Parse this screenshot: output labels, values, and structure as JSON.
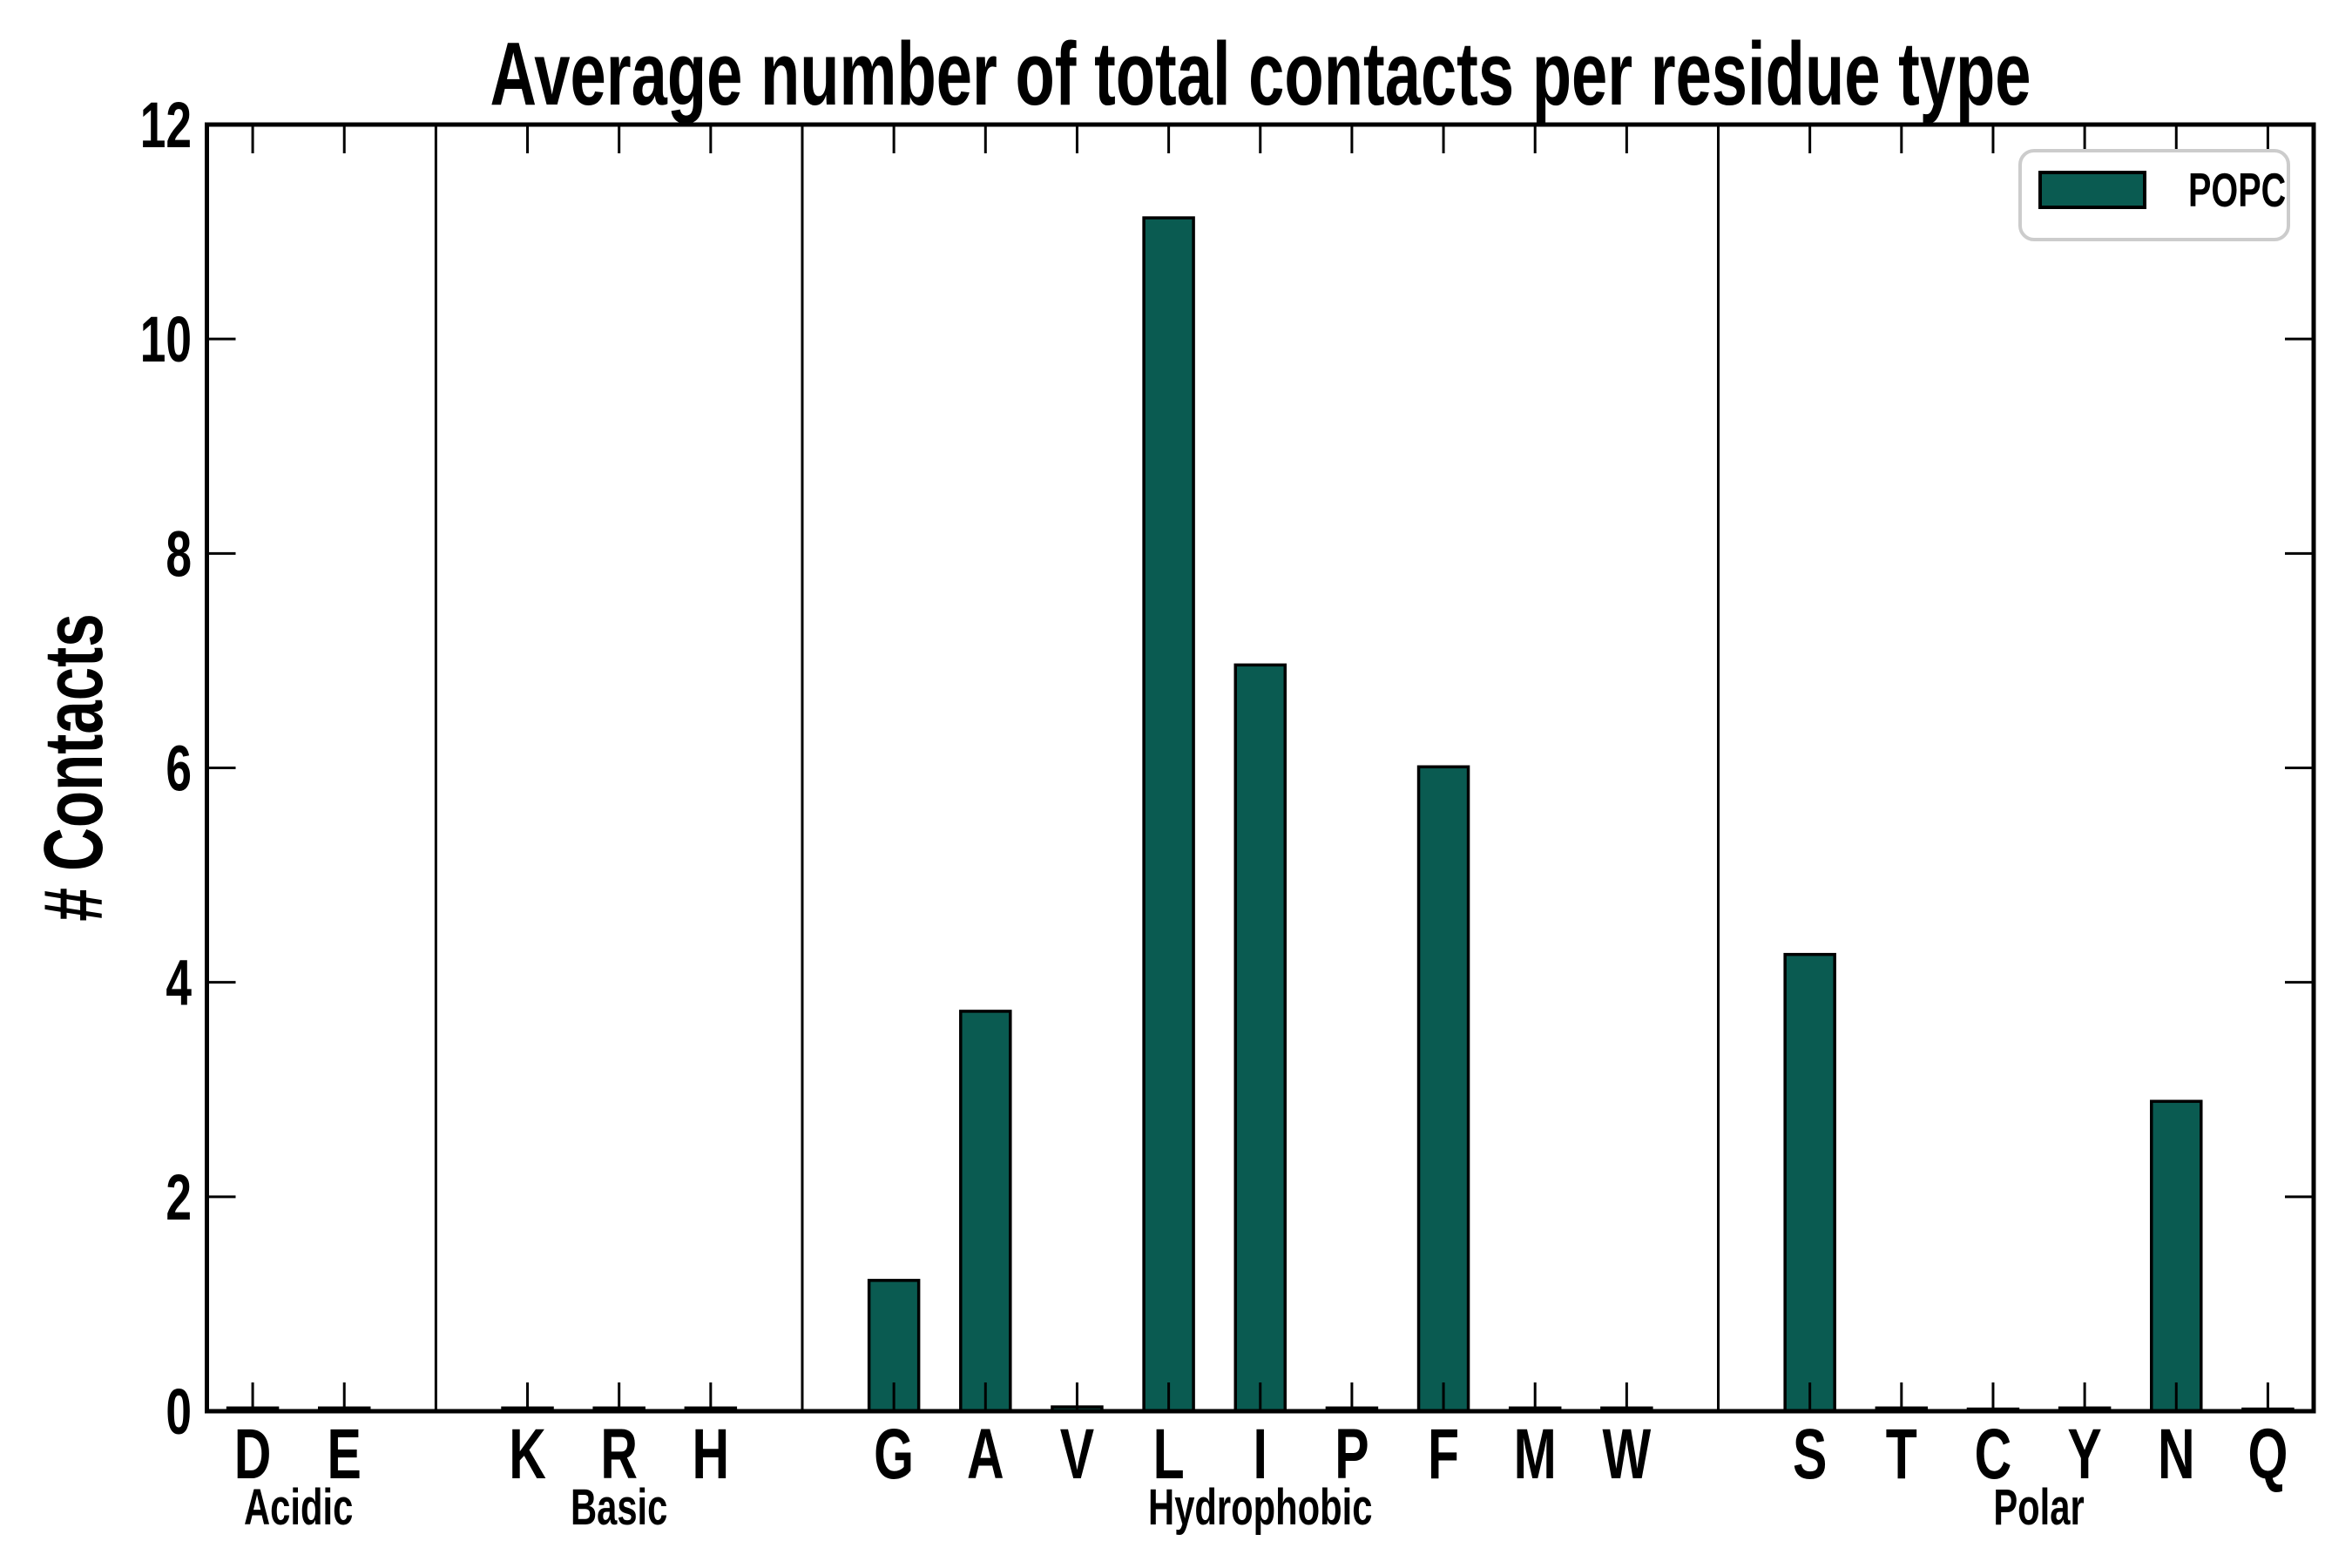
{
  "chart_data": {
    "type": "bar",
    "title": "Average number of total contacts per residue type",
    "ylabel": "# Contacts",
    "xlabel": "",
    "ylim": [
      0,
      12
    ],
    "yticks": [
      0,
      2,
      4,
      6,
      8,
      10,
      12
    ],
    "grid": false,
    "legend": {
      "entries": [
        "POPC"
      ],
      "position": "upper right"
    },
    "colors": {
      "bar_fill": "#0a5b51",
      "bar_edge": "#000000",
      "axes": "#000000",
      "legend_border": "#cccccc",
      "background": "#ffffff"
    },
    "groups": [
      {
        "label": "Acidic",
        "categories": [
          "D",
          "E"
        ],
        "values": [
          0.03,
          0.03
        ]
      },
      {
        "label": "Basic",
        "categories": [
          "K",
          "R",
          "H"
        ],
        "values": [
          0.03,
          0.03,
          0.03
        ]
      },
      {
        "label": "Hydrophobic",
        "categories": [
          "G",
          "A",
          "V",
          "L",
          "I",
          "P",
          "F",
          "M",
          "W"
        ],
        "values": [
          1.22,
          3.73,
          0.04,
          11.13,
          6.96,
          0.03,
          6.01,
          0.03,
          0.03
        ]
      },
      {
        "label": "Polar",
        "categories": [
          "S",
          "T",
          "C",
          "Y",
          "N",
          "Q"
        ],
        "values": [
          4.26,
          0.03,
          0.02,
          0.03,
          2.89,
          0.02
        ]
      }
    ]
  }
}
